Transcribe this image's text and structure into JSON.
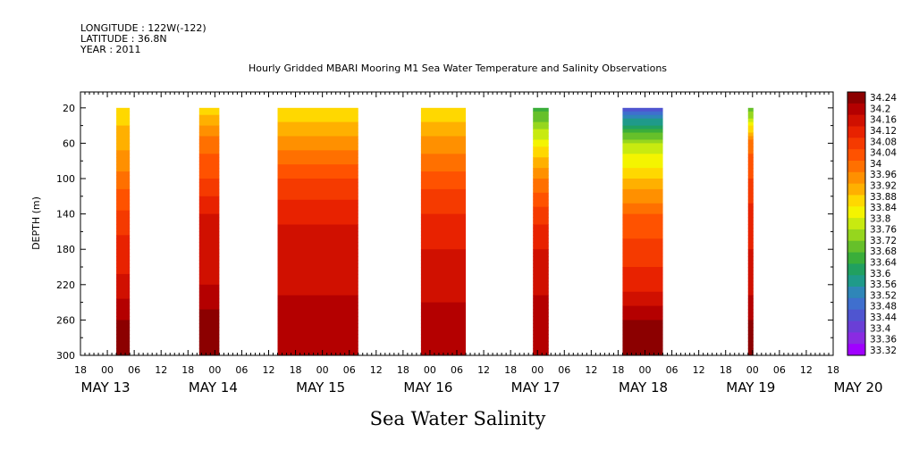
{
  "header": {
    "longitude": "LONGITUDE : 122W(-122)",
    "latitude": "LATITUDE : 36.8N",
    "year": "YEAR : 2011"
  },
  "plot_title": "Hourly Gridded MBARI Mooring M1 Sea Water Temperature and Salinity Observations",
  "bottom_title": "Sea Water Salinity",
  "colors": {
    "background": "#ffffff",
    "axis": "#000000",
    "colorbar": [
      "#a000ff",
      "#8a2be2",
      "#6a3fd6",
      "#4f55d0",
      "#3f6fce",
      "#2f86b8",
      "#1f9a8a",
      "#21a060",
      "#3aae3a",
      "#66c02a",
      "#96d61e",
      "#c8ea10",
      "#f4f400",
      "#ffd800",
      "#ffb000",
      "#ff9000",
      "#ff7000",
      "#ff5200",
      "#f53a00",
      "#e82200",
      "#d01000",
      "#b40000",
      "#8c0000"
    ]
  },
  "chart_data": {
    "type": "heatmap",
    "title": "Hourly Gridded MBARI Mooring M1 Sea Water Temperature and Salinity Observations",
    "variable": "Sea Water Salinity",
    "ylabel": "DEPTH (m)",
    "y_reversed": true,
    "ylim": [
      300,
      2
    ],
    "y_ticks": [
      20,
      60,
      100,
      140,
      180,
      220,
      260,
      300
    ],
    "x_hour_ticks": [
      "18",
      "00",
      "06",
      "12",
      "18",
      "00",
      "06",
      "12",
      "18",
      "00",
      "06",
      "12",
      "18",
      "00",
      "06",
      "12",
      "18",
      "00",
      "06",
      "12",
      "18",
      "00",
      "06",
      "12",
      "18",
      "00",
      "06",
      "12",
      "18"
    ],
    "x_day_labels": [
      "MAY 13",
      "MAY 14",
      "MAY 15",
      "MAY 16",
      "MAY 17",
      "MAY 18",
      "MAY 19",
      "MAY 20"
    ],
    "x_day_hours": [
      0,
      24,
      48,
      72,
      96,
      120,
      144,
      168
    ],
    "x_range_hours": [
      -6,
      162
    ],
    "colorbar_levels": [
      "34.24",
      "34.2",
      "34.16",
      "34.12",
      "34.08",
      "34.04",
      "34",
      "33.96",
      "33.92",
      "33.88",
      "33.84",
      "33.8",
      "33.76",
      "33.72",
      "33.68",
      "33.64",
      "33.6",
      "33.56",
      "33.52",
      "33.48",
      "33.44",
      "33.4",
      "33.36",
      "33.32"
    ],
    "segments": [
      {
        "start": 2,
        "end": 5,
        "top": 20,
        "profile": [
          [
            20,
            33.86
          ],
          [
            60,
            33.9
          ],
          [
            100,
            33.98
          ],
          [
            140,
            34.05
          ],
          [
            180,
            34.1
          ],
          [
            220,
            34.13
          ],
          [
            260,
            34.2
          ],
          [
            300,
            34.2
          ]
        ]
      },
      {
        "start": 20.5,
        "end": 25,
        "top": 20,
        "profile": [
          [
            20,
            33.86
          ],
          [
            60,
            33.98
          ],
          [
            100,
            34.04
          ],
          [
            140,
            34.12
          ],
          [
            180,
            34.15
          ],
          [
            220,
            34.16
          ],
          [
            260,
            34.22
          ],
          [
            300,
            34.2
          ]
        ]
      },
      {
        "start": 38,
        "end": 56,
        "top": 20,
        "profile": [
          [
            20,
            33.84
          ],
          [
            60,
            33.94
          ],
          [
            100,
            34.04
          ],
          [
            140,
            34.11
          ],
          [
            180,
            34.14
          ],
          [
            220,
            34.14
          ],
          [
            260,
            34.2
          ],
          [
            300,
            34.16
          ]
        ]
      },
      {
        "start": 70,
        "end": 80,
        "top": 20,
        "profile": [
          [
            20,
            33.84
          ],
          [
            60,
            33.94
          ],
          [
            100,
            34.02
          ],
          [
            140,
            34.08
          ],
          [
            180,
            34.12
          ],
          [
            220,
            34.14
          ],
          [
            260,
            34.18
          ],
          [
            300,
            34.18
          ]
        ]
      },
      {
        "start": 95,
        "end": 98.5,
        "top": 20,
        "profile": [
          [
            20,
            33.66
          ],
          [
            60,
            33.82
          ],
          [
            100,
            33.96
          ],
          [
            140,
            34.06
          ],
          [
            180,
            34.12
          ],
          [
            220,
            34.14
          ],
          [
            260,
            34.2
          ],
          [
            300,
            34.18
          ]
        ]
      },
      {
        "start": 115,
        "end": 124,
        "top": 20,
        "profile": [
          [
            20,
            33.46
          ],
          [
            60,
            33.76
          ],
          [
            100,
            33.88
          ],
          [
            140,
            34.0
          ],
          [
            180,
            34.06
          ],
          [
            220,
            34.1
          ],
          [
            260,
            34.2
          ],
          [
            300,
            34.2
          ]
        ]
      },
      {
        "start": 143,
        "end": 144.2,
        "top": 20,
        "profile": [
          [
            20,
            33.68
          ],
          [
            60,
            33.98
          ],
          [
            140,
            34.1
          ],
          [
            220,
            34.14
          ],
          [
            260,
            34.2
          ],
          [
            300,
            34.2
          ]
        ]
      }
    ]
  }
}
